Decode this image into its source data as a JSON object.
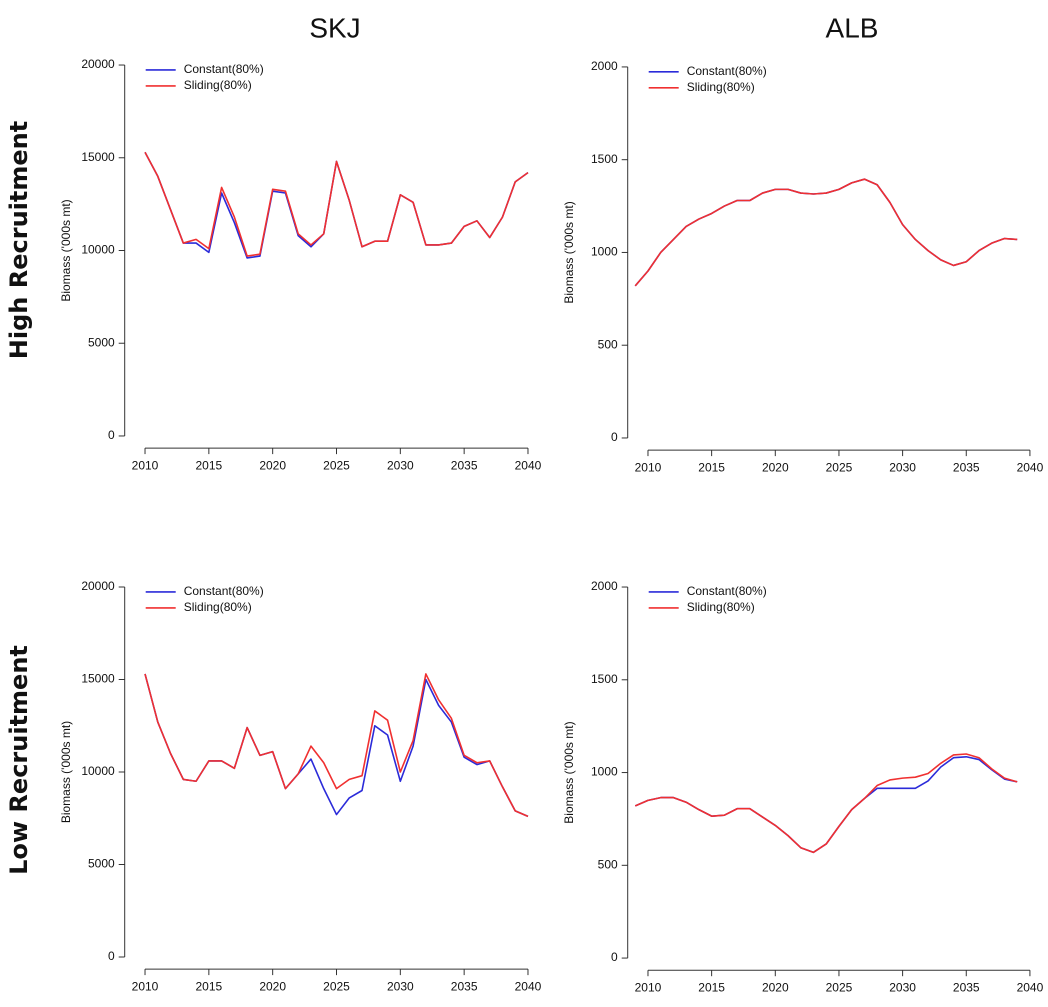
{
  "column_titles": [
    "SKJ",
    "ALB"
  ],
  "row_titles": [
    "High Recruitment",
    "Low Recruitment"
  ],
  "chart_data": [
    {
      "type": "line",
      "ylabel": "Biomass ('000s mt)",
      "legend": "top-left",
      "x": [
        2010,
        2011,
        2012,
        2013,
        2014,
        2015,
        2016,
        2017,
        2018,
        2019,
        2020,
        2021,
        2022,
        2023,
        2024,
        2025,
        2026,
        2027,
        2028,
        2029,
        2030,
        2031,
        2032,
        2033,
        2034,
        2035,
        2036,
        2037,
        2038,
        2039,
        2040
      ],
      "xlim": [
        2008.8,
        2041.2
      ],
      "xticks": [
        2010,
        2015,
        2020,
        2025,
        2030,
        2035,
        2040
      ],
      "ylim": [
        -600,
        20600
      ],
      "yticks": [
        0,
        5000,
        10000,
        15000,
        20000
      ],
      "series": [
        {
          "name": "Constant(80%)",
          "color": "#2b2bd9",
          "values": [
            15300,
            14000,
            12200,
            10400,
            10400,
            9900,
            13100,
            11500,
            9600,
            9700,
            13200,
            13100,
            10800,
            10200,
            10900,
            14800,
            12700,
            10200,
            10500,
            10500,
            13000,
            12600,
            10300,
            10300,
            10400,
            11300,
            11600,
            10700,
            11800,
            13700,
            14200
          ]
        },
        {
          "name": "Sliding(80%)",
          "color": "#f03030",
          "values": [
            15300,
            14000,
            12200,
            10400,
            10600,
            10100,
            13400,
            11800,
            9700,
            9800,
            13300,
            13200,
            10900,
            10300,
            10900,
            14800,
            12700,
            10200,
            10500,
            10500,
            13000,
            12600,
            10300,
            10300,
            10400,
            11300,
            11600,
            10700,
            11800,
            13700,
            14200
          ]
        }
      ]
    },
    {
      "type": "line",
      "ylabel": "Biomass ('000s mt)",
      "legend": "top-left",
      "x": [
        2009,
        2010,
        2011,
        2012,
        2013,
        2014,
        2015,
        2016,
        2017,
        2018,
        2019,
        2020,
        2021,
        2022,
        2023,
        2024,
        2025,
        2026,
        2027,
        2028,
        2029,
        2030,
        2031,
        2032,
        2033,
        2034,
        2035,
        2036,
        2037,
        2038,
        2039
      ],
      "xlim": [
        2008.8,
        2041.2
      ],
      "xticks": [
        2010,
        2015,
        2020,
        2025,
        2030,
        2035,
        2040
      ],
      "ylim": [
        -60,
        2060
      ],
      "yticks": [
        0,
        500,
        1000,
        1500,
        2000
      ],
      "series": [
        {
          "name": "Constant(80%)",
          "color": "#2b2bd9",
          "values": [
            820,
            900,
            1000,
            1070,
            1140,
            1180,
            1210,
            1250,
            1280,
            1280,
            1320,
            1340,
            1340,
            1320,
            1315,
            1320,
            1340,
            1375,
            1395,
            1365,
            1270,
            1150,
            1070,
            1010,
            960,
            930,
            950,
            1010,
            1050,
            1075,
            1070
          ]
        },
        {
          "name": "Sliding(80%)",
          "color": "#f03030",
          "values": [
            820,
            900,
            1000,
            1070,
            1140,
            1180,
            1210,
            1250,
            1280,
            1280,
            1320,
            1340,
            1340,
            1320,
            1315,
            1320,
            1340,
            1375,
            1395,
            1365,
            1270,
            1150,
            1070,
            1010,
            960,
            930,
            950,
            1010,
            1050,
            1075,
            1070
          ]
        }
      ]
    },
    {
      "type": "line",
      "ylabel": "Biomass ('000s mt)",
      "legend": "top-left",
      "x": [
        2010,
        2011,
        2012,
        2013,
        2014,
        2015,
        2016,
        2017,
        2018,
        2019,
        2020,
        2021,
        2022,
        2023,
        2024,
        2025,
        2026,
        2027,
        2028,
        2029,
        2030,
        2031,
        2032,
        2033,
        2034,
        2035,
        2036,
        2037,
        2038,
        2039,
        2040
      ],
      "xlim": [
        2008.8,
        2041.2
      ],
      "xticks": [
        2010,
        2015,
        2020,
        2025,
        2030,
        2035,
        2040
      ],
      "ylim": [
        -600,
        20600
      ],
      "yticks": [
        0,
        5000,
        10000,
        15000,
        20000
      ],
      "series": [
        {
          "name": "Constant(80%)",
          "color": "#2b2bd9",
          "values": [
            15300,
            12700,
            11000,
            9600,
            9500,
            10600,
            10600,
            10200,
            12400,
            10900,
            11100,
            9100,
            9900,
            10700,
            9100,
            7700,
            8600,
            9000,
            12500,
            12000,
            9500,
            11400,
            15000,
            13600,
            12700,
            10800,
            10400,
            10600,
            9200,
            7900,
            7600
          ]
        },
        {
          "name": "Sliding(80%)",
          "color": "#f03030",
          "values": [
            15300,
            12700,
            11000,
            9600,
            9500,
            10600,
            10600,
            10200,
            12400,
            10900,
            11100,
            9100,
            9900,
            11400,
            10500,
            9100,
            9600,
            9800,
            13300,
            12800,
            10000,
            11700,
            15300,
            13900,
            12900,
            10900,
            10500,
            10600,
            9200,
            7900,
            7600
          ]
        }
      ]
    },
    {
      "type": "line",
      "ylabel": "Biomass ('000s mt)",
      "legend": "top-left",
      "x": [
        2009,
        2010,
        2011,
        2012,
        2013,
        2014,
        2015,
        2016,
        2017,
        2018,
        2019,
        2020,
        2021,
        2022,
        2023,
        2024,
        2025,
        2026,
        2027,
        2028,
        2029,
        2030,
        2031,
        2032,
        2033,
        2034,
        2035,
        2036,
        2037,
        2038,
        2039
      ],
      "xlim": [
        2008.8,
        2041.2
      ],
      "xticks": [
        2010,
        2015,
        2020,
        2025,
        2030,
        2035,
        2040
      ],
      "ylim": [
        -60,
        2060
      ],
      "yticks": [
        0,
        500,
        1000,
        1500,
        2000
      ],
      "series": [
        {
          "name": "Constant(80%)",
          "color": "#2b2bd9",
          "values": [
            820,
            850,
            865,
            865,
            840,
            800,
            765,
            770,
            805,
            805,
            760,
            715,
            660,
            595,
            570,
            615,
            710,
            800,
            860,
            915,
            915,
            915,
            915,
            955,
            1030,
            1080,
            1085,
            1070,
            1015,
            965,
            950
          ]
        },
        {
          "name": "Sliding(80%)",
          "color": "#f03030",
          "values": [
            820,
            850,
            865,
            865,
            840,
            800,
            765,
            770,
            805,
            805,
            760,
            715,
            660,
            595,
            570,
            615,
            710,
            800,
            860,
            930,
            960,
            970,
            975,
            995,
            1050,
            1095,
            1100,
            1080,
            1020,
            970,
            950
          ]
        }
      ]
    }
  ]
}
